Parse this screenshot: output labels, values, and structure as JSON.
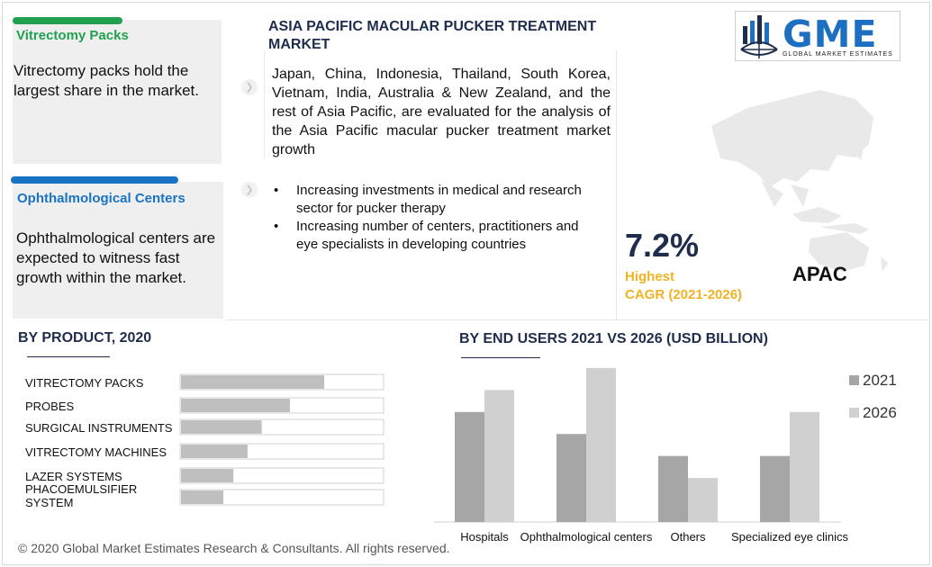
{
  "cards": [
    {
      "title": "Vitrectomy Packs",
      "text": "Vitrectomy packs hold the largest share in the market.",
      "color": "#21a150"
    },
    {
      "title": "Ophthalmological Centers",
      "text": "Ophthalmological centers are expected to witness fast growth within the market.",
      "color": "#1a73c2"
    }
  ],
  "header": {
    "title": "ASIA PACIFIC MACULAR PUCKER TREATMENT MARKET",
    "description": "Japan, China, Indonesia, Thailand, South Korea, Vietnam, India, Australia & New Zealand, and the rest of Asia Pacific, are evaluated for the analysis of the Asia Pacific macular pucker treatment market  growth",
    "bullets": [
      "Increasing investments in medical and research sector for pucker therapy",
      "Increasing number of centers, practitioners and eye specialists in developing countries"
    ],
    "bullet_glyph": "•"
  },
  "logo": {
    "text": "GME",
    "subtitle": "GLOBAL MARKET ESTIMATES"
  },
  "stats": {
    "cagr_value": "7.2%",
    "cagr_label_1": "Highest",
    "cagr_label_2": "CAGR (2021-2026)",
    "region": "APAC"
  },
  "footer": "© 2020 Global Market Estimates Research & Consultants. All rights reserved.",
  "chart_data": [
    {
      "type": "bar",
      "orientation": "horizontal",
      "title": "BY PRODUCT, 2020",
      "categories": [
        "VITRECTOMY PACKS",
        "PROBES",
        "SURGICAL INSTRUMENTS",
        "VITRECTOMY MACHINES",
        "LAZER SYSTEMS",
        "PHACOEMULSIFIER SYSTEM"
      ],
      "values": [
        0.71,
        0.54,
        0.4,
        0.33,
        0.26,
        0.21
      ],
      "xlim": [
        0,
        1
      ],
      "grid": false,
      "legend": false,
      "bar_color": "#bfbfbf"
    },
    {
      "type": "bar",
      "title": "BY END USERS 2021 VS 2026 (USD BILLION)",
      "categories": [
        "Hospitals",
        "Ophthalmological centers",
        "Others",
        "Specialized eye clinics"
      ],
      "series": [
        {
          "name": "2021",
          "values": [
            5,
            4,
            3,
            3
          ],
          "color": "#a6a6a6"
        },
        {
          "name": "2026",
          "values": [
            6,
            7,
            2,
            5
          ],
          "color": "#d0d0d0"
        }
      ],
      "ylim": [
        0,
        7.2
      ],
      "grid": false,
      "legend": "right"
    }
  ]
}
